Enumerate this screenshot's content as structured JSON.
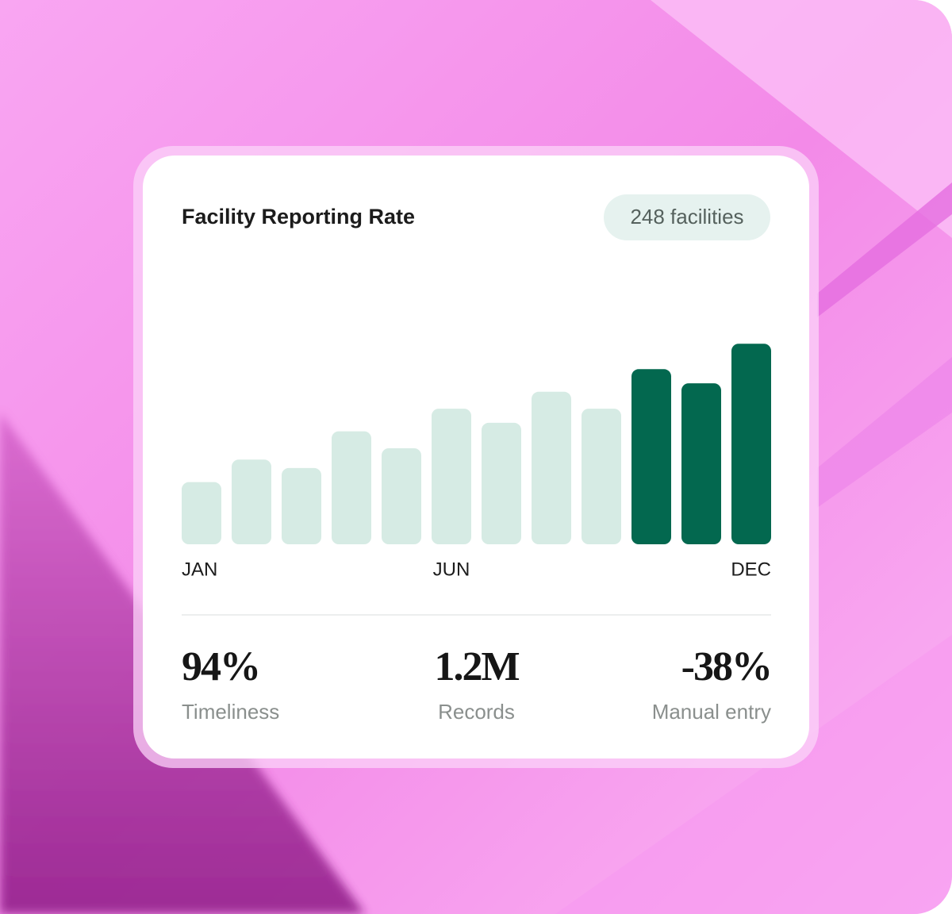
{
  "chart_data": {
    "type": "bar",
    "title": "Facility Reporting Rate",
    "badge": "248 facilities",
    "categories": [
      "JAN",
      null,
      null,
      null,
      null,
      "JUN",
      null,
      null,
      null,
      null,
      null,
      "DEC"
    ],
    "values": [
      22,
      30,
      27,
      40,
      34,
      48,
      43,
      54,
      48,
      62,
      57,
      71
    ],
    "colors": [
      "#d6ebe4",
      "#d6ebe4",
      "#d6ebe4",
      "#d6ebe4",
      "#d6ebe4",
      "#d6ebe4",
      "#d6ebe4",
      "#d6ebe4",
      "#d6ebe4",
      "#03684f",
      "#03684f",
      "#03684f"
    ],
    "ylim": [
      0,
      100
    ]
  },
  "stats": [
    {
      "value": "94%",
      "label": "Timeliness"
    },
    {
      "value": "1.2M",
      "label": "Records"
    },
    {
      "value": "-38%",
      "label": "Manual entry"
    }
  ]
}
